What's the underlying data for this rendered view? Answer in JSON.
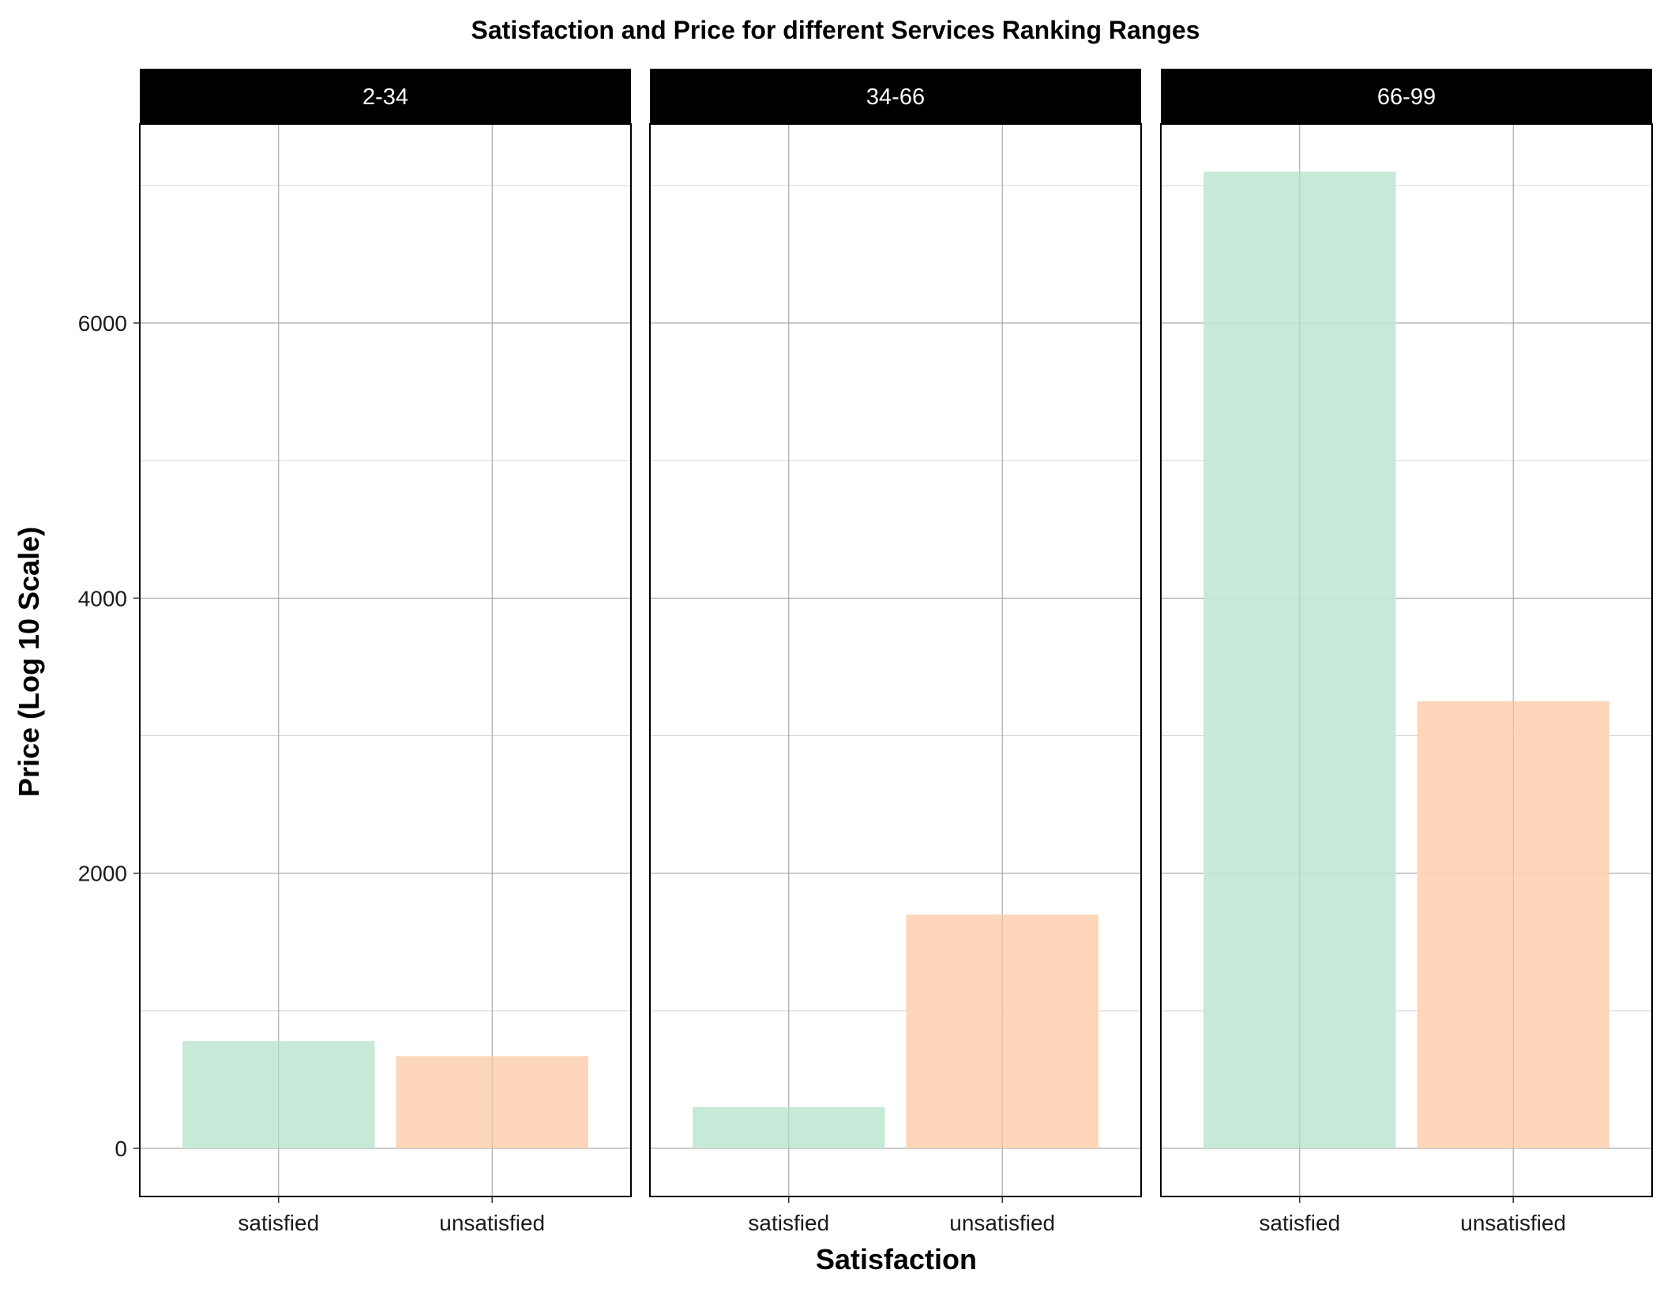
{
  "chart_data": {
    "type": "bar",
    "title": "Satisfaction and Price for different Services Ranking Ranges",
    "xlabel": "Satisfaction",
    "ylabel": "Price (Log 10 Scale)",
    "categories": [
      "satisfied",
      "unsatisfied"
    ],
    "yticks": [
      0,
      2000,
      4000,
      6000
    ],
    "ylim": [
      -350,
      7450
    ],
    "grid": true,
    "colors": {
      "satisfied": "#c1e8d4",
      "unsatisfied": "#fdd3b4"
    },
    "panels": [
      {
        "label": "2-34",
        "values": [
          780,
          670
        ]
      },
      {
        "label": "34-66",
        "values": [
          300,
          1700
        ]
      },
      {
        "label": "66-99",
        "values": [
          7100,
          3250
        ]
      }
    ]
  }
}
